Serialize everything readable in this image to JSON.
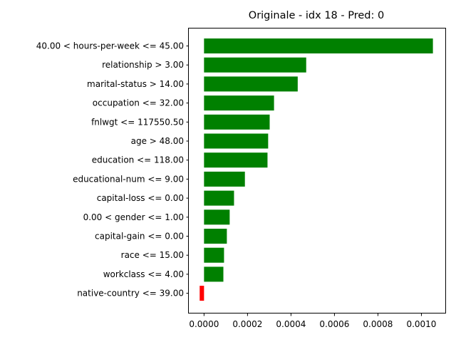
{
  "chart_data": {
    "type": "bar",
    "orientation": "horizontal",
    "title": "Originale - idx 18 - Pred: 0",
    "xlabel": "",
    "ylabel": "",
    "categories": [
      "40.00 < hours-per-week <= 45.00",
      "relationship > 3.00",
      "marital-status > 14.00",
      "occupation <= 32.00",
      "fnlwgt <= 117550.50",
      "age > 48.00",
      "education <= 118.00",
      "educational-num <= 9.00",
      "capital-loss <= 0.00",
      "0.00 < gender <= 1.00",
      "capital-gain <= 0.00",
      "race <= 15.00",
      "workclass <= 4.00",
      "native-country <= 39.00"
    ],
    "values": [
      0.001053,
      0.00047,
      0.000431,
      0.000322,
      0.000302,
      0.000295,
      0.000292,
      0.000188,
      0.000138,
      0.000118,
      0.000105,
      9.2e-05,
      8.9e-05,
      -2e-05
    ],
    "xlim": [
      -7e-05,
      0.00111
    ],
    "xticks": [
      0.0,
      0.0002,
      0.0004,
      0.0006,
      0.0008,
      0.001
    ],
    "xtick_labels": [
      "0.0000",
      "0.0002",
      "0.0004",
      "0.0006",
      "0.0008",
      "0.0010"
    ],
    "colors": {
      "positive": "#008000",
      "negative": "#ff0000"
    },
    "grid": false,
    "legend": "none"
  }
}
